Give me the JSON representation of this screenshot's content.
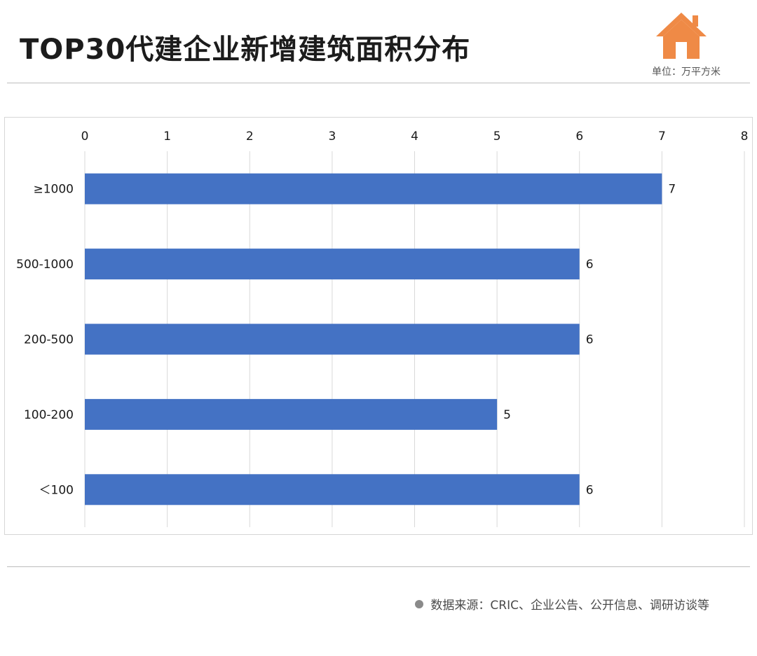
{
  "title": "TOP30代建企业新增建筑面积分布",
  "unit": "单位：万平方米",
  "source": "数据来源：CRIC、企业公告、公开信息、调研访谈等",
  "colors": {
    "bar": "#4472c4",
    "icon": "#ef8a46",
    "grid": "#d9d9d9"
  },
  "icons": {
    "logo": "house-icon",
    "bullet": "dot-icon"
  },
  "chart_data": {
    "type": "bar",
    "orientation": "horizontal",
    "categories": [
      "≥1000",
      "500-1000",
      "200-500",
      "100-200",
      "＜100"
    ],
    "values": [
      7,
      6,
      6,
      5,
      6
    ],
    "xlim": [
      0,
      8
    ],
    "x_ticks": [
      "0",
      "1",
      "2",
      "3",
      "4",
      "5",
      "6",
      "7",
      "8"
    ],
    "x_axis_position": "top",
    "grid": true,
    "data_labels": [
      "7",
      "6",
      "6",
      "5",
      "6"
    ]
  }
}
